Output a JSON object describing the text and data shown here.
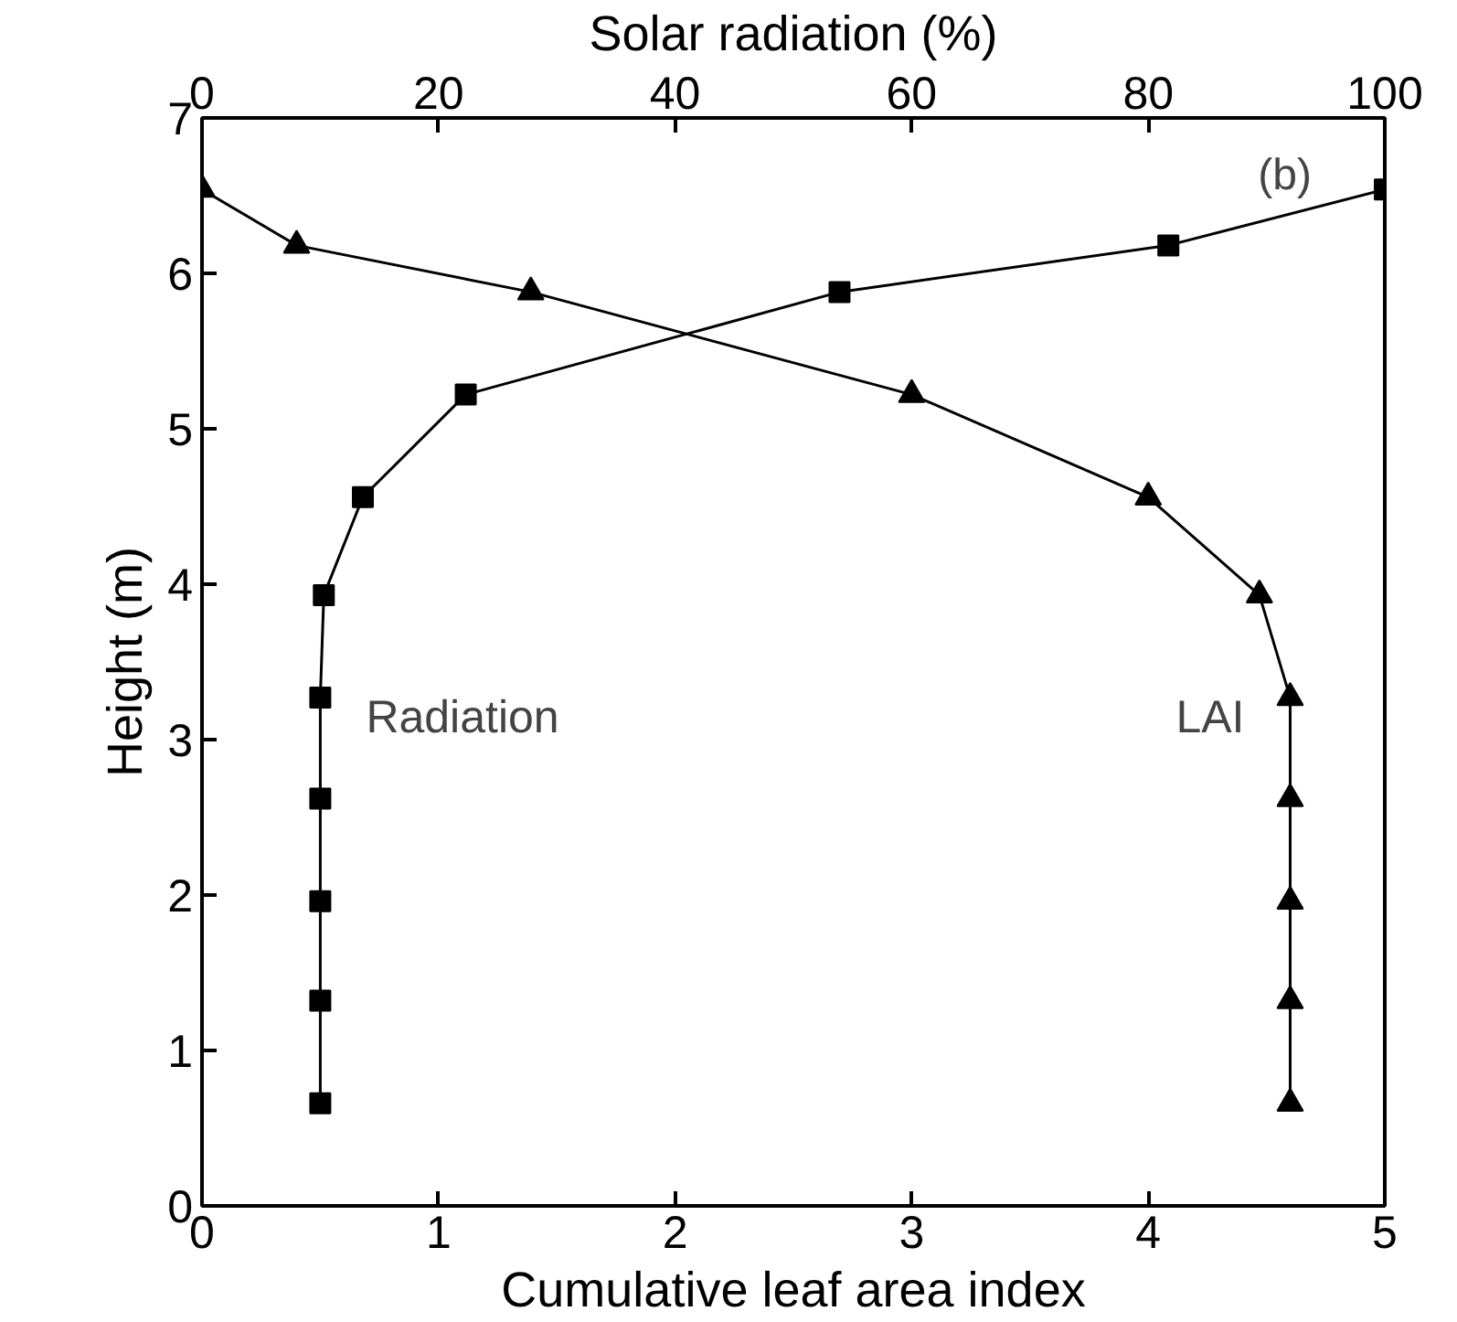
{
  "chart_data": {
    "type": "line",
    "xlabel": "Cumulative leaf area index",
    "x2label": "Solar radiation (%)",
    "ylabel": "Height (m)",
    "xlim": [
      0,
      5
    ],
    "xticks": [
      0,
      1,
      2,
      3,
      4,
      5
    ],
    "x2lim": [
      0,
      100
    ],
    "x2ticks": [
      0,
      20,
      40,
      60,
      80,
      100
    ],
    "ylim": [
      0,
      7
    ],
    "yticks": [
      0,
      1,
      2,
      3,
      4,
      5,
      6,
      7
    ],
    "grid": false,
    "annotations": [
      "(b)"
    ],
    "series": [
      {
        "name": "Radiation",
        "color": "#000000",
        "axis": "x2",
        "marker": "square",
        "x": [
          10,
          10,
          10,
          10,
          10,
          10.3,
          13.6,
          22.3,
          53.9,
          81.7,
          100
        ],
        "values": [
          0.66,
          1.32,
          1.96,
          2.62,
          3.27,
          3.93,
          4.56,
          5.22,
          5.88,
          6.18,
          6.54
        ]
      },
      {
        "name": "LAI",
        "color": "#000000",
        "marker": "triangle",
        "x": [
          4.6,
          4.6,
          4.6,
          4.6,
          4.6,
          4.47,
          4.0,
          3.0,
          1.39,
          0.4,
          0
        ],
        "values": [
          0.66,
          1.32,
          1.96,
          2.62,
          3.27,
          3.93,
          4.56,
          5.22,
          5.88,
          6.18,
          6.54
        ]
      }
    ]
  }
}
